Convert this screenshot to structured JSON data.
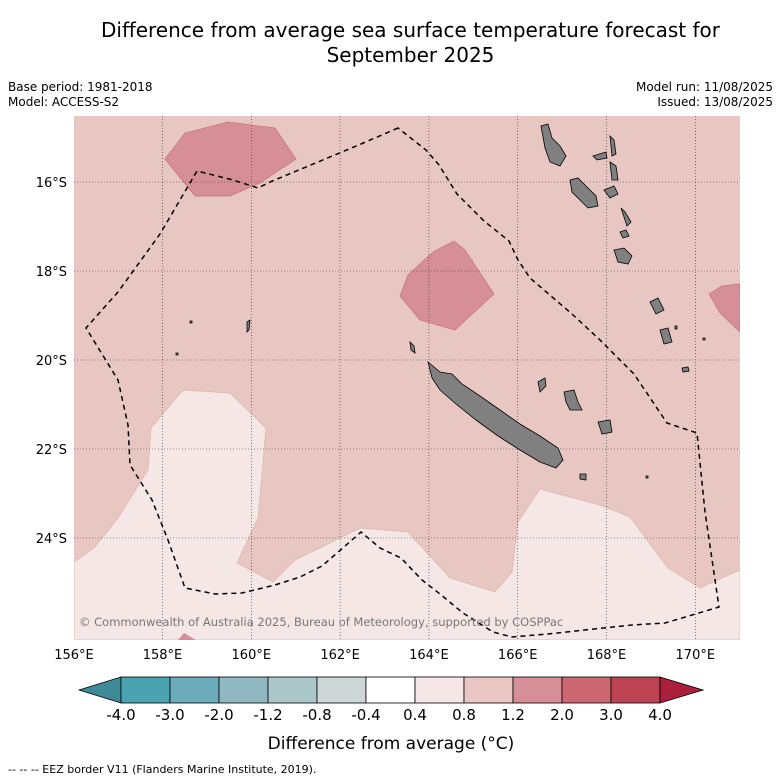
{
  "title_line1": "Difference from average sea surface temperature forecast for",
  "title_line2": "September 2025",
  "meta_left": [
    "Base period: 1981-2018",
    "Model: ACCESS-S2"
  ],
  "meta_right": [
    "Model run: 11/08/2025",
    "Issued: 13/08/2025"
  ],
  "map": {
    "lon_ticks": [
      "156°E",
      "158°E",
      "160°E",
      "162°E",
      "164°E",
      "166°E",
      "168°E",
      "170°E"
    ],
    "lat_ticks": [
      "16°S",
      "18°S",
      "20°S",
      "22°S",
      "24°S"
    ],
    "copyright": "© Commonwealth of Australia 2025, Bureau of Meteorology, supported by COSPPac",
    "background_class_color": "#e8c6c2",
    "land_color": "#808080"
  },
  "colorbar": {
    "tick_labels": [
      "-4.0",
      "-3.0",
      "-2.0",
      "-1.2",
      "-0.8",
      "-0.4",
      "0.4",
      "0.8",
      "1.2",
      "2.0",
      "3.0",
      "4.0"
    ],
    "colors": [
      "#3e8a98",
      "#4aa3b1",
      "#6cacbb",
      "#8fb8c2",
      "#a9c7c9",
      "#cdd7d8",
      "#ffffff",
      "#f5e7e5",
      "#e8c6c2",
      "#d68f96",
      "#cc6670",
      "#bd4352",
      "#ac1f3a"
    ],
    "label": "Difference from average (°C)"
  },
  "footer": "--  --  -- EEZ border V11 (Flanders Marine Institute, 2019)."
}
